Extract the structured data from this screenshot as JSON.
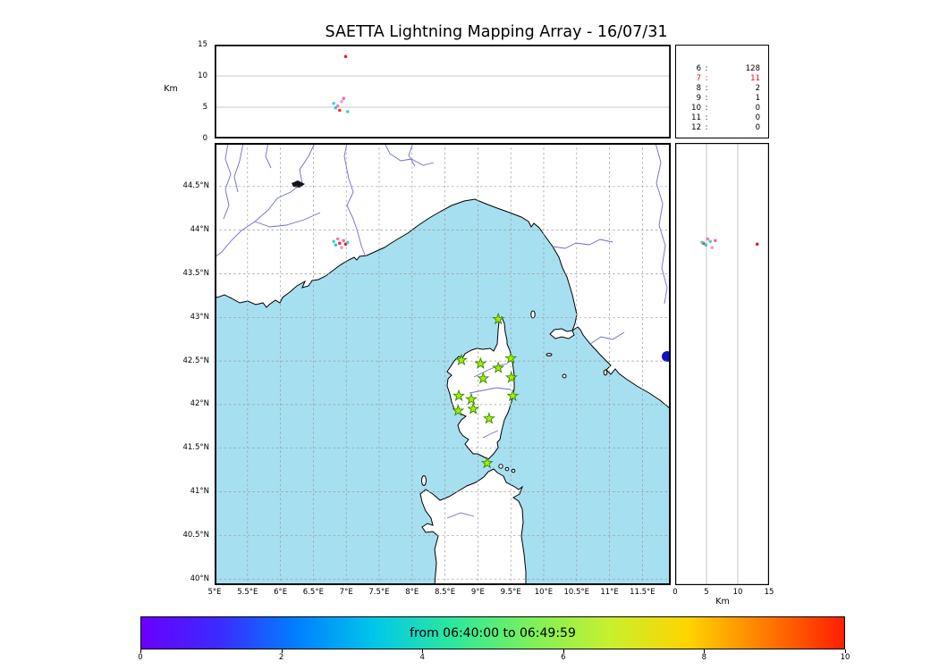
{
  "title": "SAETTA Lightning Mapping Array - 16/07/31",
  "axes": {
    "alt": {
      "unit": "Km",
      "ticks": [
        0,
        5,
        10,
        15
      ],
      "lim": [
        0,
        15
      ],
      "grid": [
        5,
        10
      ]
    },
    "lat": {
      "tick_labels": [
        "44.5°N",
        "44°N",
        "43.5°N",
        "43°N",
        "42.5°N",
        "42°N",
        "41.5°N",
        "41°N",
        "40.5°N",
        "40°N"
      ],
      "tick_values": [
        44.5,
        44,
        43.5,
        43,
        42.5,
        42,
        41.5,
        41,
        40.5,
        40
      ],
      "lim": [
        39.93,
        45.0
      ]
    },
    "lon": {
      "tick_labels": [
        "5°E",
        "5.5°E",
        "6°E",
        "6.5°E",
        "7°E",
        "7.5°E",
        "8°E",
        "8.5°E",
        "9°E",
        "9.5°E",
        "10°E",
        "10.5°E",
        "11°E",
        "11.5°E"
      ],
      "tick_values": [
        5,
        5.5,
        6,
        6.5,
        7,
        7.5,
        8,
        8.5,
        9,
        9.5,
        10,
        10.5,
        11,
        11.5
      ],
      "lim": [
        5.0,
        11.93
      ]
    }
  },
  "station_table": {
    "rows": [
      {
        "stations": "6",
        "count": "128",
        "highlight": false
      },
      {
        "stations": "7",
        "count": "11",
        "highlight": true
      },
      {
        "stations": "8",
        "count": "2",
        "highlight": false
      },
      {
        "stations": "9",
        "count": "1",
        "highlight": false
      },
      {
        "stations": "10",
        "count": "0",
        "highlight": false
      },
      {
        "stations": "11",
        "count": "0",
        "highlight": false
      },
      {
        "stations": "12",
        "count": "0",
        "highlight": false
      }
    ],
    "highlight_color": "#ff0000"
  },
  "colorbar": {
    "label": "from 06:40:00 to 06:49:59",
    "tick_labels": [
      "0",
      "2",
      "4",
      "6",
      "8",
      "10"
    ],
    "tick_values": [
      0,
      2,
      4,
      6,
      8,
      10
    ],
    "lim": [
      0,
      10
    ],
    "gradient_colors": [
      "#6a00ff",
      "#3b2bff",
      "#0080ff",
      "#00c8e8",
      "#2ee89c",
      "#7df05a",
      "#c8f02e",
      "#ffd400",
      "#ff7a00",
      "#ff1e00"
    ]
  },
  "colors": {
    "sea": "#a6dff0",
    "land": "#ffffff",
    "coastline": "#000000",
    "river": "#6b6bd6",
    "grid": "#9a9a9a",
    "station_star_fill": "#a8ee00",
    "station_star_edge": "#338800",
    "lake": "#1010c8",
    "alpine_lake": "#151515",
    "source_cyan": "#3fd4d4",
    "source_pink": "#f47bb4",
    "source_red": "#e82020"
  },
  "chart_data": {
    "type": "scatter",
    "title": "SAETTA Lightning Mapping Array - 16/07/31",
    "date": "16/07/31",
    "time_window_label": "from 06:40:00 to 06:49:59",
    "colorbar_range": [
      0,
      10
    ],
    "colorbar_ticks": [
      0,
      2,
      4,
      6,
      8,
      10
    ],
    "panels": [
      {
        "id": "altitude-vs-longitude",
        "type": "scatter",
        "ylabel": "Km",
        "ylim": [
          0,
          15
        ],
        "yticks": [
          0,
          5,
          10,
          15
        ],
        "xlim_lon": [
          5.0,
          11.93
        ]
      },
      {
        "id": "map-lon-lat",
        "type": "scatter",
        "lon_lim": [
          5.0,
          11.93
        ],
        "lat_lim": [
          39.93,
          45.0
        ],
        "grid": true
      },
      {
        "id": "altitude-vs-latitude",
        "type": "scatter",
        "xlabel": "Km",
        "xlim": [
          0,
          15
        ],
        "xticks": [
          0,
          5,
          10,
          15
        ],
        "ylim_lat": [
          39.93,
          45.0
        ]
      },
      {
        "id": "sources-per-station-count",
        "type": "table",
        "highlighted_station_count": 7
      }
    ],
    "station_count_histogram": {
      "6": 128,
      "7": 11,
      "8": 2,
      "9": 1,
      "10": 0,
      "11": 0,
      "12": 0
    },
    "lma_stations": [
      {
        "lon": 9.31,
        "lat": 42.98
      },
      {
        "lon": 8.75,
        "lat": 42.51
      },
      {
        "lon": 9.04,
        "lat": 42.47
      },
      {
        "lon": 9.31,
        "lat": 42.42
      },
      {
        "lon": 9.5,
        "lat": 42.53
      },
      {
        "lon": 9.08,
        "lat": 42.3
      },
      {
        "lon": 9.51,
        "lat": 42.31
      },
      {
        "lon": 8.71,
        "lat": 42.1
      },
      {
        "lon": 8.9,
        "lat": 42.06
      },
      {
        "lon": 9.53,
        "lat": 42.1
      },
      {
        "lon": 8.7,
        "lat": 41.93
      },
      {
        "lon": 8.93,
        "lat": 41.95
      },
      {
        "lon": 9.17,
        "lat": 41.84
      },
      {
        "lon": 9.14,
        "lat": 41.33
      }
    ],
    "lightning_sources": [
      {
        "lon": 6.81,
        "lat": 43.87,
        "alt_km": 5.6,
        "color": "#3fd4d4"
      },
      {
        "lon": 6.84,
        "lat": 43.83,
        "alt_km": 4.9,
        "color": "#2fc9dc"
      },
      {
        "lon": 6.87,
        "lat": 43.9,
        "alt_km": 5.2,
        "color": "#f47bb4"
      },
      {
        "lon": 6.9,
        "lat": 43.85,
        "alt_km": 4.5,
        "color": "#ef3535"
      },
      {
        "lon": 6.93,
        "lat": 43.8,
        "alt_km": 5.9,
        "color": "#f79bc4"
      },
      {
        "lon": 6.96,
        "lat": 43.88,
        "alt_km": 6.4,
        "color": "#ef6ab8"
      },
      {
        "lon": 6.99,
        "lat": 43.84,
        "alt_km": 13.1,
        "color": "#e82020"
      },
      {
        "lon": 7.02,
        "lat": 43.86,
        "alt_km": 4.3,
        "color": "#45d0c8"
      }
    ]
  }
}
